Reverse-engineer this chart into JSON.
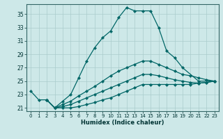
{
  "xlabel": "Humidex (Indice chaleur)",
  "background_color": "#cde8e8",
  "grid_color": "#aacccc",
  "line_color": "#006666",
  "xlim": [
    -0.5,
    23.5
  ],
  "ylim": [
    20.5,
    36.5
  ],
  "yticks": [
    21,
    23,
    25,
    27,
    29,
    31,
    33,
    35
  ],
  "xticks": [
    0,
    1,
    2,
    3,
    4,
    5,
    6,
    7,
    8,
    9,
    10,
    11,
    12,
    13,
    14,
    15,
    16,
    17,
    18,
    19,
    20,
    21,
    22,
    23
  ],
  "series": [
    {
      "x": [
        0,
        1,
        2,
        3,
        4,
        5,
        6,
        7,
        8,
        9,
        10,
        11,
        12,
        13,
        14,
        15,
        16,
        17,
        18,
        19,
        21,
        23
      ],
      "y": [
        23.5,
        22.2,
        22.2,
        21.0,
        22.0,
        23.0,
        25.5,
        28.0,
        30.0,
        31.5,
        32.5,
        34.5,
        36.0,
        35.5,
        35.5,
        35.5,
        33.0,
        29.5,
        28.5,
        27.0,
        25.0,
        25.0
      ]
    },
    {
      "x": [
        2,
        3,
        4,
        5,
        6,
        7,
        8,
        9,
        10,
        11,
        12,
        13,
        14,
        15,
        16,
        17,
        18,
        19,
        20,
        21,
        22,
        23
      ],
      "y": [
        22.2,
        21.0,
        21.5,
        22.0,
        22.8,
        23.5,
        24.2,
        25.0,
        25.8,
        26.5,
        27.0,
        27.5,
        28.0,
        28.0,
        27.5,
        27.0,
        26.5,
        26.0,
        25.8,
        25.5,
        25.2,
        25.0
      ]
    },
    {
      "x": [
        2,
        3,
        4,
        5,
        6,
        7,
        8,
        9,
        10,
        11,
        12,
        13,
        14,
        15,
        16,
        17,
        18,
        19,
        20,
        21,
        22,
        23
      ],
      "y": [
        22.2,
        21.0,
        21.2,
        21.5,
        22.0,
        22.5,
        23.0,
        23.5,
        24.0,
        24.5,
        25.0,
        25.5,
        26.0,
        26.0,
        25.8,
        25.5,
        25.2,
        25.0,
        24.8,
        24.7,
        24.8,
        25.0
      ]
    },
    {
      "x": [
        2,
        3,
        4,
        5,
        6,
        7,
        8,
        9,
        10,
        11,
        12,
        13,
        14,
        15,
        16,
        17,
        18,
        19,
        20,
        21,
        22,
        23
      ],
      "y": [
        22.2,
        21.0,
        21.0,
        21.0,
        21.2,
        21.5,
        21.8,
        22.2,
        22.5,
        23.0,
        23.5,
        24.0,
        24.5,
        24.5,
        24.5,
        24.5,
        24.5,
        24.5,
        24.5,
        24.7,
        24.8,
        25.0
      ]
    }
  ]
}
